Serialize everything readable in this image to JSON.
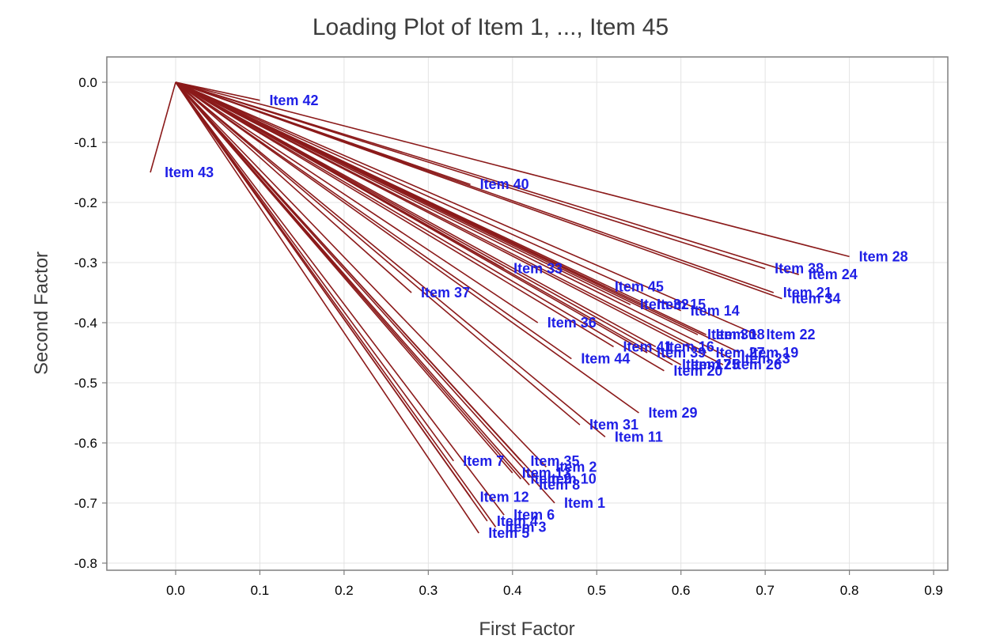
{
  "chart_data": {
    "type": "scatter",
    "title": "Loading Plot of Item 1, ..., Item 45",
    "xlabel": "First Factor",
    "ylabel": "Second Factor",
    "xlim": [
      -0.09,
      0.92
    ],
    "ylim": [
      -0.83,
      0.04
    ],
    "x_ticks": [
      "0.0",
      "0.1",
      "0.2",
      "0.3",
      "0.4",
      "0.5",
      "0.6",
      "0.7",
      "0.8",
      "0.9"
    ],
    "y_ticks": [
      "0.0",
      "-0.1",
      "-0.2",
      "-0.3",
      "-0.4",
      "-0.5",
      "-0.6",
      "-0.7",
      "-0.8"
    ],
    "grid": true,
    "line_color": "#8b1a1a",
    "label_color": "#1f1fe6",
    "points": [
      {
        "name": "Item 1",
        "x": 0.45,
        "y": -0.7
      },
      {
        "name": "Item 2",
        "x": 0.44,
        "y": -0.64
      },
      {
        "name": "Item 3",
        "x": 0.38,
        "y": -0.74
      },
      {
        "name": "Item 4",
        "x": 0.37,
        "y": -0.73
      },
      {
        "name": "Item 5",
        "x": 0.36,
        "y": -0.75
      },
      {
        "name": "Item 6",
        "x": 0.39,
        "y": -0.72
      },
      {
        "name": "Item 7",
        "x": 0.33,
        "y": -0.63
      },
      {
        "name": "Item 8",
        "x": 0.42,
        "y": -0.67
      },
      {
        "name": "Item 9",
        "x": 0.41,
        "y": -0.66
      },
      {
        "name": "Item 10",
        "x": 0.43,
        "y": -0.66
      },
      {
        "name": "Item 11",
        "x": 0.51,
        "y": -0.59
      },
      {
        "name": "Item 12",
        "x": 0.35,
        "y": -0.69
      },
      {
        "name": "Item 13",
        "x": 0.4,
        "y": -0.65
      },
      {
        "name": "Item 14",
        "x": 0.6,
        "y": -0.38
      },
      {
        "name": "Item 15",
        "x": 0.56,
        "y": -0.37
      },
      {
        "name": "Item 16",
        "x": 0.57,
        "y": -0.44
      },
      {
        "name": "Item 17",
        "x": 0.59,
        "y": -0.47
      },
      {
        "name": "Item 18",
        "x": 0.63,
        "y": -0.42
      },
      {
        "name": "Item 19",
        "x": 0.67,
        "y": -0.45
      },
      {
        "name": "Item 20",
        "x": 0.58,
        "y": -0.48
      },
      {
        "name": "Item 21",
        "x": 0.71,
        "y": -0.35
      },
      {
        "name": "Item 22",
        "x": 0.69,
        "y": -0.42
      },
      {
        "name": "Item 23",
        "x": 0.66,
        "y": -0.46
      },
      {
        "name": "Item 24",
        "x": 0.74,
        "y": -0.32
      },
      {
        "name": "Item 25",
        "x": 0.6,
        "y": -0.47
      },
      {
        "name": "Item 26",
        "x": 0.65,
        "y": -0.47
      },
      {
        "name": "Item 27",
        "x": 0.63,
        "y": -0.45
      },
      {
        "name": "Item 28",
        "x": 0.8,
        "y": -0.29
      },
      {
        "name": "Item 29",
        "x": 0.55,
        "y": -0.55
      },
      {
        "name": "Item 30",
        "x": 0.62,
        "y": -0.42
      },
      {
        "name": "Item 31",
        "x": 0.48,
        "y": -0.57
      },
      {
        "name": "Item 32",
        "x": 0.54,
        "y": -0.37
      },
      {
        "name": "Item 33",
        "x": 0.39,
        "y": -0.31
      },
      {
        "name": "Item 34",
        "x": 0.72,
        "y": -0.36
      },
      {
        "name": "Item 35",
        "x": 0.41,
        "y": -0.63
      },
      {
        "name": "Item 36",
        "x": 0.43,
        "y": -0.4
      },
      {
        "name": "Item 37",
        "x": 0.28,
        "y": -0.35
      },
      {
        "name": "Item 38",
        "x": 0.7,
        "y": -0.31
      },
      {
        "name": "Item 39",
        "x": 0.56,
        "y": -0.45
      },
      {
        "name": "Item 40",
        "x": 0.35,
        "y": -0.17
      },
      {
        "name": "Item 41",
        "x": 0.52,
        "y": -0.44
      },
      {
        "name": "Item 42",
        "x": 0.1,
        "y": -0.03
      },
      {
        "name": "Item 43",
        "x": -0.03,
        "y": -0.15
      },
      {
        "name": "Item 44",
        "x": 0.47,
        "y": -0.46
      },
      {
        "name": "Item 45",
        "x": 0.51,
        "y": -0.34
      }
    ]
  }
}
